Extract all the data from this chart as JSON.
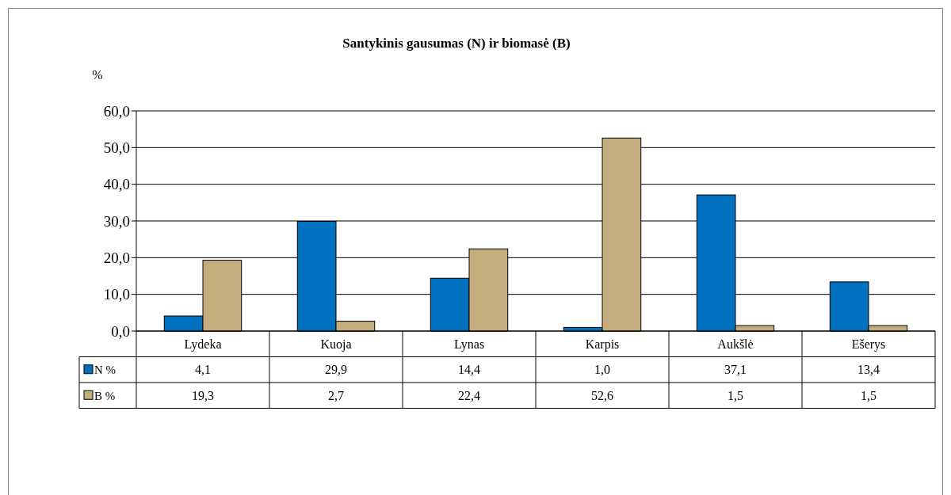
{
  "chart_data": {
    "type": "bar",
    "title": "Santykinis gausumas (N) ir biomasė (B)",
    "ylabel": "%",
    "categories": [
      "Lydeka",
      "Kuoja",
      "Lynas",
      "Karpis",
      "Aukšlė",
      "Ešerys"
    ],
    "series": [
      {
        "name": "N %",
        "color": "#0070c0",
        "values": [
          4.1,
          29.9,
          14.4,
          1.0,
          37.1,
          13.4
        ],
        "value_labels": [
          "4,1",
          "29,9",
          "14,4",
          "1,0",
          "37,1",
          "13,4"
        ]
      },
      {
        "name": "B %",
        "color": "#c4ac7c",
        "values": [
          19.3,
          2.7,
          22.4,
          52.6,
          1.5,
          1.5
        ],
        "value_labels": [
          "19,3",
          "2,7",
          "22,4",
          "52,6",
          "1,5",
          "1,5"
        ]
      }
    ],
    "ylim": [
      0,
      60
    ],
    "yticks": [
      {
        "value": 0,
        "label": "0,0"
      },
      {
        "value": 10,
        "label": "10,0"
      },
      {
        "value": 20,
        "label": "20,0"
      },
      {
        "value": 30,
        "label": "30,0"
      },
      {
        "value": 40,
        "label": "40,0"
      },
      {
        "value": 50,
        "label": "50,0"
      },
      {
        "value": 60,
        "label": "60,0"
      }
    ],
    "grid": "y",
    "legend": "bottom"
  }
}
